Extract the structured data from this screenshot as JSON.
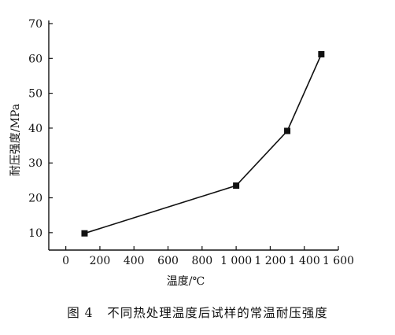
{
  "chart_data": {
    "type": "line",
    "title": "",
    "xlabel": "温度/℃",
    "ylabel": "耐压强度/MPa",
    "xlim": [
      -100,
      1600
    ],
    "ylim": [
      5,
      70
    ],
    "x_ticks": [
      0,
      200,
      400,
      600,
      800,
      1000,
      1200,
      1400,
      1600
    ],
    "x_tick_labels": [
      "0",
      "200",
      "400",
      "600",
      "800",
      "1 000",
      "1 200",
      "1 400",
      "1 600"
    ],
    "y_ticks": [
      10,
      20,
      30,
      40,
      50,
      60,
      70
    ],
    "y_tick_labels": [
      "10",
      "20",
      "30",
      "40",
      "50",
      "60",
      "70"
    ],
    "grid": false,
    "marker": "square",
    "series": [
      {
        "x": [
          110,
          1000,
          1300,
          1500
        ],
        "y": [
          9.8,
          23.5,
          39.2,
          61.2
        ]
      }
    ],
    "colors": {
      "line": "#111111",
      "marker": "#111111",
      "axis": "#111111"
    }
  },
  "caption": "图 4   不同热处理温度后试样的常温耐压强度"
}
